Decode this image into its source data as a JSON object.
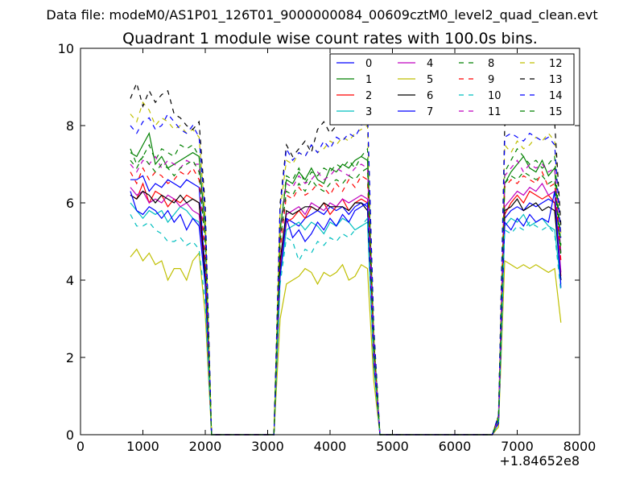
{
  "suptitle": "Data file: modeM0/AS1P01_126T01_9000000084_00609cztM0_level2_quad_clean.evt",
  "chart_data": {
    "type": "line",
    "title": "Quadrant 1 module wise count rates with 100.0s bins.",
    "xlabel": "",
    "ylabel": "",
    "x_offset_label": "+1.84652e8",
    "xlim": [
      0,
      8000
    ],
    "ylim": [
      0,
      10
    ],
    "xticks": [
      0,
      1000,
      2000,
      3000,
      4000,
      5000,
      6000,
      7000,
      8000
    ],
    "yticks": [
      0,
      2,
      4,
      6,
      8,
      10
    ],
    "grid": false,
    "legend_position": "top-right",
    "legend_columns": 4,
    "x": [
      800,
      900,
      1000,
      1100,
      1200,
      1300,
      1400,
      1500,
      1600,
      1700,
      1800,
      1900,
      2000,
      2100,
      2200,
      2300,
      2400,
      2500,
      2600,
      2700,
      2800,
      2900,
      3000,
      3100,
      3200,
      3300,
      3400,
      3500,
      3600,
      3700,
      3800,
      3900,
      4000,
      4100,
      4200,
      4300,
      4400,
      4500,
      4600,
      4700,
      4800,
      4900,
      5000,
      5100,
      5200,
      5300,
      5400,
      5500,
      5600,
      5700,
      5800,
      5900,
      6000,
      6100,
      6200,
      6300,
      6400,
      6500,
      6600,
      6700,
      6800,
      6900,
      7000,
      7100,
      7200,
      7300,
      7400,
      7500,
      7600,
      7700
    ],
    "series": [
      {
        "name": "0",
        "color": "#0000ff",
        "dash": "solid",
        "values": [
          6.6,
          6.6,
          6.7,
          6.3,
          6.5,
          6.4,
          6.6,
          6.5,
          6.4,
          6.6,
          6.5,
          6.4,
          4.2,
          0,
          0,
          0,
          0,
          0,
          0,
          0,
          0,
          0,
          0,
          0,
          4.5,
          5.6,
          5.5,
          5.4,
          5.6,
          5.7,
          5.8,
          5.7,
          5.9,
          5.8,
          5.9,
          5.7,
          5.9,
          6.0,
          5.9,
          2.0,
          0,
          0,
          0,
          0,
          0,
          0,
          0,
          0,
          0,
          0,
          0,
          0,
          0,
          0,
          0,
          0,
          0,
          0,
          0,
          0.3,
          5.6,
          5.8,
          5.9,
          5.8,
          6.0,
          5.9,
          6.0,
          6.1,
          6.0,
          4.0
        ]
      },
      {
        "name": "1",
        "color": "#008000",
        "dash": "solid",
        "values": [
          7.3,
          7.2,
          7.5,
          7.8,
          7.0,
          7.2,
          6.9,
          7.0,
          7.1,
          7.2,
          7.3,
          7.2,
          5.3,
          0,
          0,
          0,
          0,
          0,
          0,
          0,
          0,
          0,
          0,
          0,
          5.3,
          6.6,
          6.5,
          6.8,
          6.6,
          6.9,
          6.6,
          6.5,
          6.9,
          6.8,
          7.0,
          6.9,
          7.1,
          7.2,
          7.1,
          2.4,
          0,
          0,
          0,
          0,
          0,
          0,
          0,
          0,
          0,
          0,
          0,
          0,
          0,
          0,
          0,
          0,
          0,
          0,
          0,
          0.4,
          6.5,
          6.8,
          7.0,
          7.2,
          6.9,
          6.8,
          7.1,
          6.7,
          6.9,
          4.7
        ]
      },
      {
        "name": "2",
        "color": "#ff0000",
        "dash": "solid",
        "values": [
          6.2,
          6.1,
          6.5,
          6.0,
          6.3,
          6.2,
          5.9,
          6.1,
          6.0,
          6.2,
          6.1,
          6.0,
          4.0,
          0,
          0,
          0,
          0,
          0,
          0,
          0,
          0,
          0,
          0,
          0,
          4.3,
          5.5,
          5.6,
          5.8,
          5.6,
          5.9,
          5.8,
          6.0,
          5.7,
          5.9,
          6.1,
          5.8,
          6.0,
          6.1,
          6.0,
          1.9,
          0,
          0,
          0,
          0,
          0,
          0,
          0,
          0,
          0,
          0,
          0,
          0,
          0,
          0,
          0,
          0,
          0,
          0,
          0,
          0.3,
          5.7,
          6.0,
          6.2,
          6.0,
          6.3,
          6.2,
          6.1,
          6.2,
          6.0,
          4.1
        ]
      },
      {
        "name": "3",
        "color": "#00bfbf",
        "dash": "solid",
        "values": [
          6.0,
          5.8,
          5.6,
          5.8,
          5.7,
          5.8,
          5.5,
          5.7,
          5.9,
          5.8,
          5.6,
          5.5,
          3.8,
          0,
          0,
          0,
          0,
          0,
          0,
          0,
          0,
          0,
          0,
          0,
          4.1,
          5.3,
          5.4,
          5.5,
          5.3,
          5.5,
          5.4,
          5.2,
          5.5,
          5.4,
          5.6,
          5.5,
          5.3,
          5.4,
          5.5,
          1.8,
          0,
          0,
          0,
          0,
          0,
          0,
          0,
          0,
          0,
          0,
          0,
          0,
          0,
          0,
          0,
          0,
          0,
          0,
          0,
          0.3,
          5.4,
          5.6,
          5.5,
          5.7,
          5.4,
          5.5,
          5.6,
          5.4,
          5.3,
          3.9
        ]
      },
      {
        "name": "4",
        "color": "#bf00bf",
        "dash": "solid",
        "values": [
          6.4,
          6.2,
          6.3,
          6.0,
          6.1,
          6.0,
          6.2,
          6.1,
          5.9,
          6.0,
          5.8,
          5.7,
          4.1,
          0,
          0,
          0,
          0,
          0,
          0,
          0,
          0,
          0,
          0,
          0,
          4.4,
          5.7,
          5.8,
          5.9,
          5.7,
          6.0,
          5.9,
          5.8,
          6.0,
          5.9,
          6.1,
          6.0,
          6.1,
          6.2,
          6.1,
          2.0,
          0,
          0,
          0,
          0,
          0,
          0,
          0,
          0,
          0,
          0,
          0,
          0,
          0,
          0,
          0,
          0,
          0,
          0,
          0,
          0.3,
          5.9,
          6.1,
          6.3,
          6.2,
          6.4,
          6.3,
          6.5,
          6.2,
          6.3,
          4.2
        ]
      },
      {
        "name": "5",
        "color": "#bfbf00",
        "dash": "solid",
        "values": [
          4.6,
          4.8,
          4.5,
          4.7,
          4.4,
          4.5,
          4.0,
          4.3,
          4.3,
          4.0,
          4.5,
          4.7,
          3.1,
          0,
          0,
          0,
          0,
          0,
          0,
          0,
          0,
          0,
          0,
          0,
          3.0,
          3.9,
          4.0,
          4.1,
          4.3,
          4.2,
          3.9,
          4.2,
          4.1,
          4.2,
          4.4,
          4.0,
          4.1,
          4.4,
          4.3,
          1.4,
          0,
          0,
          0,
          0,
          0,
          0,
          0,
          0,
          0,
          0,
          0,
          0,
          0,
          0,
          0,
          0,
          0,
          0,
          0,
          0.2,
          4.5,
          4.4,
          4.3,
          4.4,
          4.3,
          4.4,
          4.3,
          4.2,
          4.3,
          2.9
        ]
      },
      {
        "name": "6",
        "color": "#000000",
        "dash": "solid",
        "values": [
          6.2,
          6.1,
          6.3,
          6.2,
          6.0,
          6.2,
          6.1,
          6.0,
          6.2,
          6.0,
          6.1,
          6.0,
          4.1,
          0,
          0,
          0,
          0,
          0,
          0,
          0,
          0,
          0,
          0,
          0,
          4.5,
          5.8,
          5.7,
          5.8,
          5.9,
          5.9,
          5.8,
          6.0,
          5.9,
          5.9,
          5.9,
          5.8,
          6.0,
          6.0,
          5.8,
          1.9,
          0,
          0,
          0,
          0,
          0,
          0,
          0,
          0,
          0,
          0,
          0,
          0,
          0,
          0,
          0,
          0,
          0,
          0,
          0,
          0.3,
          5.8,
          5.9,
          6.1,
          5.8,
          5.9,
          6.0,
          5.8,
          5.9,
          5.8,
          4.0
        ]
      },
      {
        "name": "7",
        "color": "#0000ff",
        "dash": "solid",
        "values": [
          6.3,
          5.8,
          5.7,
          5.9,
          5.8,
          5.6,
          5.8,
          5.5,
          5.7,
          5.3,
          5.6,
          5.4,
          3.9,
          0,
          0,
          0,
          0,
          0,
          0,
          0,
          0,
          0,
          0,
          0,
          4.1,
          5.6,
          5.1,
          5.3,
          5.0,
          5.2,
          5.5,
          5.3,
          5.6,
          5.4,
          5.7,
          5.5,
          5.8,
          5.9,
          6.0,
          1.9,
          0,
          0,
          0,
          0,
          0,
          0,
          0,
          0,
          0,
          0,
          0,
          0,
          0,
          0,
          0,
          0,
          0,
          0,
          0,
          0.3,
          5.5,
          5.3,
          5.6,
          5.4,
          5.7,
          5.5,
          5.6,
          5.5,
          6.3,
          3.8
        ]
      },
      {
        "name": "8",
        "color": "#008000",
        "dash": "dashed",
        "values": [
          7.4,
          7.0,
          7.2,
          7.5,
          7.1,
          7.4,
          7.3,
          7.2,
          7.5,
          7.4,
          7.5,
          7.2,
          5.2,
          0,
          0,
          0,
          0,
          0,
          0,
          0,
          0,
          0,
          0,
          0,
          5.3,
          6.7,
          6.6,
          6.9,
          6.5,
          6.8,
          6.7,
          6.9,
          6.8,
          7.0,
          6.9,
          7.1,
          6.9,
          7.2,
          7.4,
          2.5,
          0,
          0,
          0,
          0,
          0,
          0,
          0,
          0,
          0,
          0,
          0,
          0,
          0,
          0,
          0,
          0,
          0,
          0,
          0,
          0.5,
          6.8,
          7.1,
          7.4,
          7.2,
          7.0,
          7.1,
          6.9,
          7.0,
          7.2,
          4.9
        ]
      },
      {
        "name": "9",
        "color": "#ff0000",
        "dash": "dashed",
        "values": [
          6.8,
          6.5,
          6.9,
          6.6,
          6.8,
          6.7,
          6.5,
          6.6,
          6.8,
          6.7,
          6.9,
          6.6,
          4.5,
          0,
          0,
          0,
          0,
          0,
          0,
          0,
          0,
          0,
          0,
          0,
          4.8,
          6.2,
          6.1,
          6.4,
          6.2,
          6.3,
          6.5,
          6.4,
          6.2,
          6.5,
          6.3,
          6.6,
          6.4,
          6.7,
          6.6,
          2.2,
          0,
          0,
          0,
          0,
          0,
          0,
          0,
          0,
          0,
          0,
          0,
          0,
          0,
          0,
          0,
          0,
          0,
          0,
          0,
          0.4,
          6.4,
          6.6,
          6.5,
          6.7,
          6.6,
          6.5,
          6.8,
          6.4,
          6.5,
          4.5
        ]
      },
      {
        "name": "10",
        "color": "#00bfbf",
        "dash": "dashed",
        "values": [
          5.7,
          5.4,
          5.4,
          5.5,
          5.3,
          5.2,
          5.0,
          5.0,
          5.1,
          4.9,
          5.0,
          4.8,
          3.4,
          0,
          0,
          0,
          0,
          0,
          0,
          0,
          0,
          0,
          0,
          0,
          3.9,
          5.1,
          5.0,
          4.5,
          4.8,
          4.7,
          5.0,
          4.9,
          5.1,
          5.0,
          5.2,
          5.1,
          5.3,
          5.4,
          5.6,
          1.8,
          0,
          0,
          0,
          0,
          0,
          0,
          0,
          0,
          0,
          0,
          0,
          0,
          0,
          0,
          0,
          0,
          0,
          0,
          0,
          0.3,
          5.3,
          5.2,
          5.4,
          5.3,
          5.5,
          5.4,
          5.3,
          5.4,
          5.2,
          3.7
        ]
      },
      {
        "name": "11",
        "color": "#bf00bf",
        "dash": "dashed",
        "values": [
          7.0,
          6.8,
          7.1,
          7.0,
          7.2,
          6.9,
          7.1,
          7.0,
          6.9,
          7.1,
          7.0,
          7.0,
          4.9,
          0,
          0,
          0,
          0,
          0,
          0,
          0,
          0,
          0,
          0,
          0,
          5.1,
          6.5,
          6.4,
          6.7,
          6.5,
          6.6,
          6.8,
          6.6,
          6.7,
          6.9,
          6.8,
          6.7,
          6.9,
          7.0,
          6.9,
          2.3,
          0,
          0,
          0,
          0,
          0,
          0,
          0,
          0,
          0,
          0,
          0,
          0,
          0,
          0,
          0,
          0,
          0,
          0,
          0,
          0.4,
          6.7,
          6.9,
          7.1,
          6.8,
          7.0,
          6.9,
          7.0,
          6.8,
          6.9,
          4.7
        ]
      },
      {
        "name": "12",
        "color": "#bfbf00",
        "dash": "dashed",
        "values": [
          8.3,
          8.1,
          8.6,
          8.4,
          8.0,
          8.2,
          8.1,
          7.9,
          8.0,
          7.8,
          7.9,
          7.7,
          5.6,
          0,
          0,
          0,
          0,
          0,
          0,
          0,
          0,
          0,
          0,
          0,
          5.8,
          7.1,
          7.0,
          7.3,
          7.2,
          7.5,
          7.3,
          7.4,
          7.6,
          7.5,
          7.7,
          7.6,
          7.8,
          7.9,
          8.0,
          2.7,
          0,
          0,
          0,
          0,
          0,
          0,
          0,
          0,
          0,
          0,
          0,
          0,
          0,
          0,
          0,
          0,
          0,
          0,
          0,
          0.5,
          7.5,
          7.3,
          7.6,
          7.4,
          7.5,
          7.7,
          7.6,
          7.8,
          7.6,
          5.2
        ]
      },
      {
        "name": "13",
        "color": "#000000",
        "dash": "dashed",
        "values": [
          8.7,
          9.1,
          8.5,
          8.9,
          8.6,
          8.8,
          8.9,
          8.3,
          8.2,
          8.0,
          7.9,
          8.1,
          5.9,
          0,
          0,
          0,
          0,
          0,
          0,
          0,
          0,
          0,
          0,
          0,
          6.0,
          7.5,
          7.2,
          7.4,
          7.6,
          7.3,
          7.9,
          8.1,
          7.8,
          8.0,
          8.2,
          8.1,
          8.3,
          8.4,
          8.3,
          2.8,
          0,
          0,
          0,
          0,
          0,
          0,
          0,
          0,
          0,
          0,
          0,
          0,
          0,
          0,
          0,
          0,
          0,
          0,
          0,
          0.5,
          8.0,
          8.2,
          8.4,
          8.1,
          8.5,
          8.3,
          8.4,
          8.2,
          8.1,
          5.4
        ]
      },
      {
        "name": "14",
        "color": "#0000ff",
        "dash": "dashed",
        "values": [
          8.0,
          7.8,
          8.1,
          8.2,
          7.9,
          8.0,
          8.3,
          8.1,
          7.9,
          7.8,
          8.0,
          7.7,
          5.7,
          0,
          0,
          0,
          0,
          0,
          0,
          0,
          0,
          0,
          0,
          0,
          5.9,
          7.4,
          7.1,
          7.3,
          7.2,
          7.5,
          7.3,
          7.6,
          7.4,
          7.7,
          7.6,
          7.8,
          7.7,
          8.0,
          8.4,
          2.7,
          0,
          0,
          0,
          0,
          0,
          0,
          0,
          0,
          0,
          0,
          0,
          0,
          0,
          0,
          0,
          0,
          0,
          0,
          0,
          0.5,
          7.7,
          7.8,
          7.7,
          7.6,
          7.8,
          7.7,
          7.6,
          7.7,
          7.5,
          5.1
        ]
      },
      {
        "name": "15",
        "color": "#008000",
        "dash": "dashed",
        "values": [
          7.1,
          6.9,
          7.2,
          7.0,
          6.8,
          7.0,
          6.9,
          6.7,
          6.9,
          7.0,
          7.1,
          6.8,
          4.9,
          0,
          0,
          0,
          0,
          0,
          0,
          0,
          0,
          0,
          0,
          0,
          5.0,
          6.3,
          6.2,
          6.5,
          6.3,
          6.6,
          6.4,
          6.3,
          6.5,
          6.6,
          6.5,
          6.7,
          6.6,
          6.8,
          6.9,
          2.3,
          0,
          0,
          0,
          0,
          0,
          0,
          0,
          0,
          0,
          0,
          0,
          0,
          0,
          0,
          0,
          0,
          0,
          0,
          0,
          0.4,
          6.5,
          6.7,
          6.6,
          6.8,
          6.7,
          6.6,
          6.7,
          6.5,
          6.6,
          4.6
        ]
      }
    ]
  }
}
